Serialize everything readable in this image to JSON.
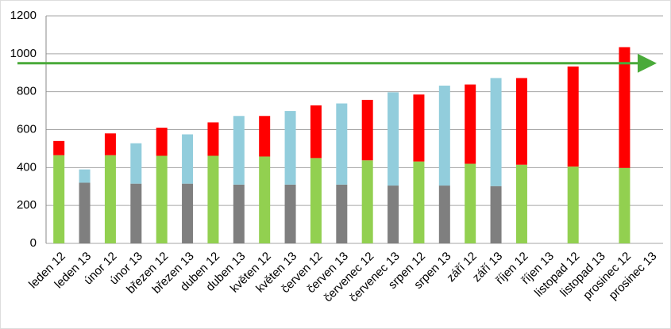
{
  "chart_data": {
    "type": "stacked_bar",
    "categories": [
      "leden 12",
      "leden 13",
      "únor 12",
      "únor 13",
      "březen 12",
      "březen 13",
      "duben 12",
      "duben 13",
      "květen 12",
      "květen 13",
      "červen 12",
      "červen 13",
      "červenec 12",
      "červenec 13",
      "srpen 12",
      "srpen 13",
      "září 12",
      "září 13",
      "říjen 12",
      "říjen 13",
      "listopad 12",
      "listopad 13",
      "prosinec 12",
      "prosinec 13"
    ],
    "series": [
      {
        "color": "#92d050",
        "values": [
          465,
          null,
          465,
          null,
          462,
          null,
          462,
          null,
          458,
          null,
          450,
          null,
          438,
          null,
          432,
          null,
          420,
          null,
          415,
          null,
          405,
          null,
          398,
          null
        ]
      },
      {
        "color": "#7f7f7f",
        "values": [
          null,
          320,
          null,
          315,
          null,
          315,
          null,
          310,
          null,
          310,
          null,
          310,
          null,
          305,
          null,
          305,
          null,
          302,
          null,
          null,
          null,
          null,
          null,
          null
        ]
      },
      {
        "color": "#ff0000",
        "values": [
          75,
          null,
          115,
          null,
          148,
          null,
          176,
          null,
          214,
          null,
          278,
          null,
          319,
          null,
          353,
          null,
          418,
          null,
          457,
          null,
          528,
          null,
          637,
          null
        ]
      },
      {
        "color": "#92cddc",
        "values": [
          null,
          70,
          null,
          213,
          null,
          260,
          null,
          362,
          null,
          388,
          null,
          428,
          null,
          492,
          null,
          527,
          null,
          570,
          null,
          null,
          null,
          null,
          null,
          null
        ]
      }
    ],
    "reference_line": {
      "value": 950,
      "color": "#4aaa3a"
    },
    "ylim": [
      0,
      1200
    ],
    "yticks": [
      0,
      200,
      400,
      600,
      800,
      1000,
      1200
    ],
    "grid": true
  }
}
